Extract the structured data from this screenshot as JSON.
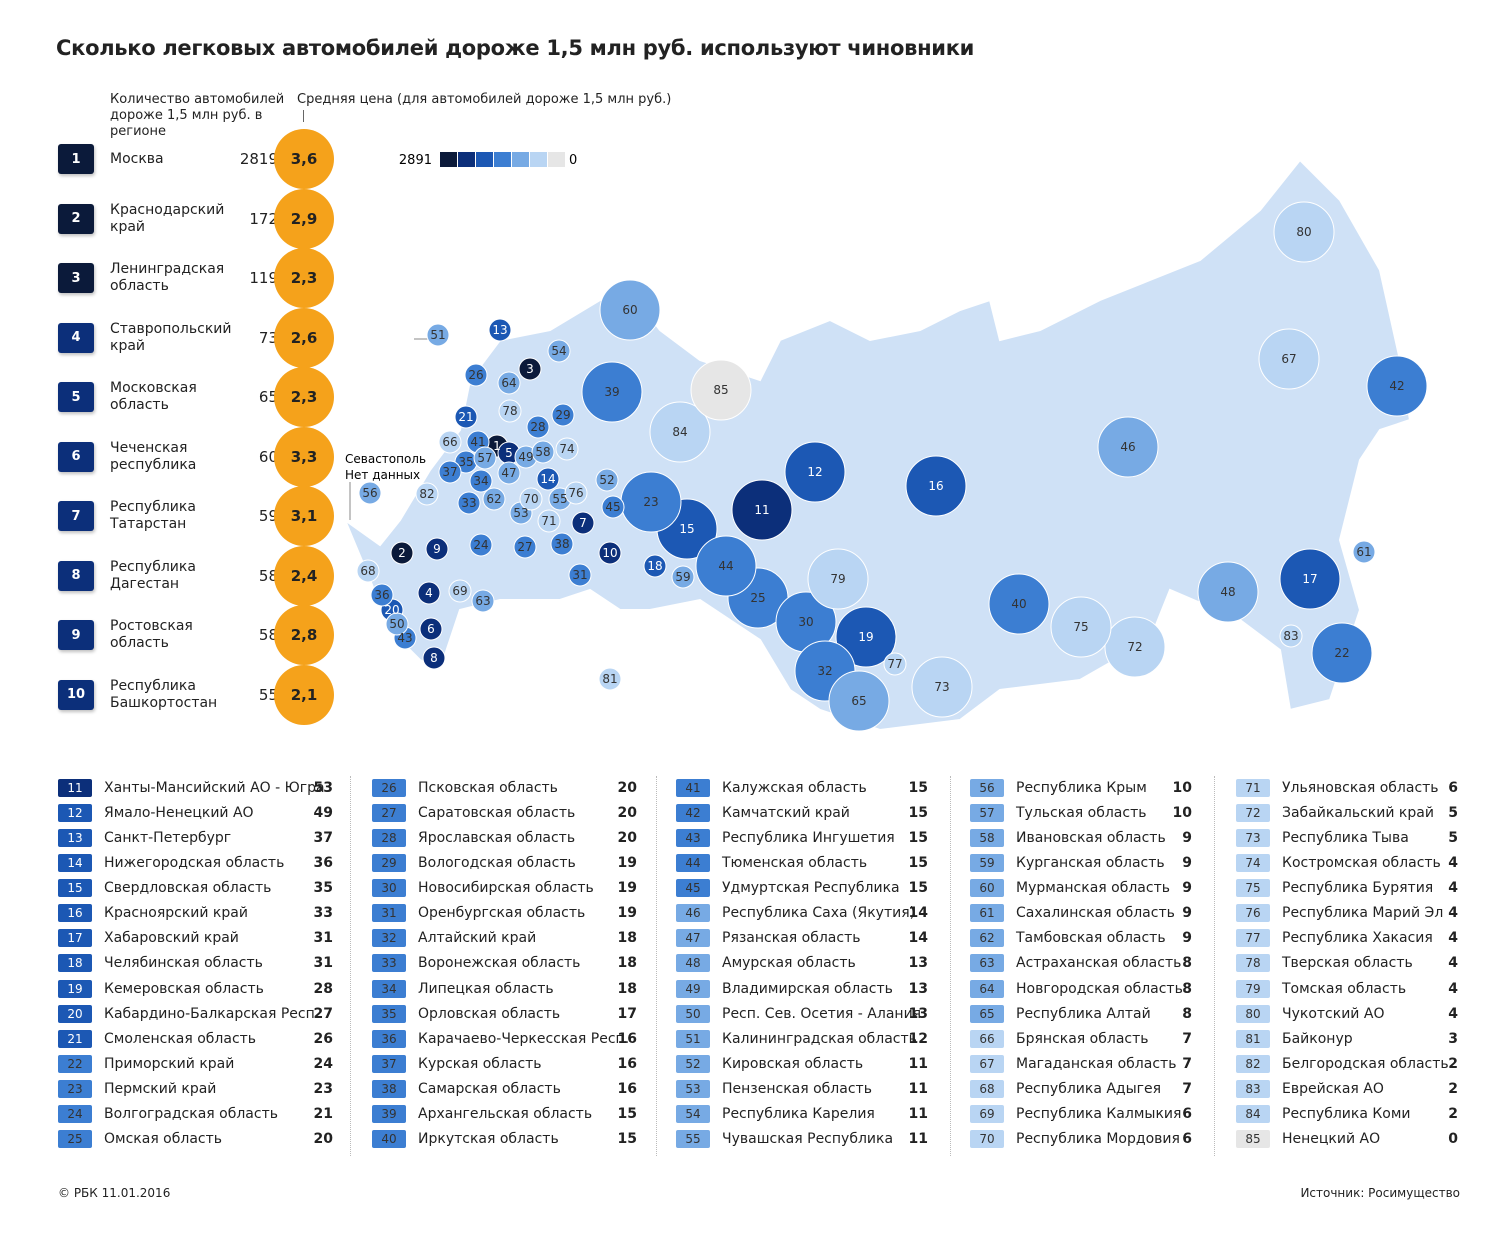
{
  "title": "Сколько легковых автомобилей дороже 1,5 млн руб. используют чиновники",
  "count_header": "Количество автомобилей дороже 1,5 млн руб. в регионе",
  "price_header": "Средняя цена (для автомобилей дороже 1,5 млн руб.)",
  "legend": {
    "max": 2891,
    "min": 0
  },
  "sevastopol": {
    "name": "Севастополь",
    "note": "Нет данных"
  },
  "regions": [
    {
      "rank": 1,
      "name": "Москва",
      "count": 2819,
      "price": "3,6"
    },
    {
      "rank": 2,
      "name": "Краснодарский край",
      "count": 172,
      "price": "2,9"
    },
    {
      "rank": 3,
      "name": "Ленинградская область",
      "count": 119,
      "price": "2,3"
    },
    {
      "rank": 4,
      "name": "Ставропольский край",
      "count": 73,
      "price": "2,6"
    },
    {
      "rank": 5,
      "name": "Московская область",
      "count": 65,
      "price": "2,3"
    },
    {
      "rank": 6,
      "name": "Чеченская республика",
      "count": 60,
      "price": "3,3"
    },
    {
      "rank": 7,
      "name": "Республика Татарстан",
      "count": 59,
      "price": "3,1"
    },
    {
      "rank": 8,
      "name": "Республика Дагестан",
      "count": 58,
      "price": "2,4"
    },
    {
      "rank": 9,
      "name": "Ростовская область",
      "count": 58,
      "price": "2,8"
    },
    {
      "rank": 10,
      "name": "Республика Башкортостан",
      "count": 55,
      "price": "2,1"
    },
    {
      "rank": 11,
      "name": "Ханты-Мансийский АО - Югра",
      "count": 53
    },
    {
      "rank": 12,
      "name": "Ямало-Ненецкий АО",
      "count": 49
    },
    {
      "rank": 13,
      "name": "Санкт-Петербург",
      "count": 37
    },
    {
      "rank": 14,
      "name": "Нижегородская область",
      "count": 36
    },
    {
      "rank": 15,
      "name": "Свердловская область",
      "count": 35
    },
    {
      "rank": 16,
      "name": "Красноярский край",
      "count": 33
    },
    {
      "rank": 17,
      "name": "Хабаровский край",
      "count": 31
    },
    {
      "rank": 18,
      "name": "Челябинская область",
      "count": 31
    },
    {
      "rank": 19,
      "name": "Кемеровская область",
      "count": 28
    },
    {
      "rank": 20,
      "name": "Кабардино-Балкарская Респ.",
      "count": 27
    },
    {
      "rank": 21,
      "name": "Смоленская область",
      "count": 26
    },
    {
      "rank": 22,
      "name": "Приморский край",
      "count": 24
    },
    {
      "rank": 23,
      "name": "Пермский край",
      "count": 23
    },
    {
      "rank": 24,
      "name": "Волгоградская область",
      "count": 21
    },
    {
      "rank": 25,
      "name": "Омская область",
      "count": 20
    },
    {
      "rank": 26,
      "name": "Псковская область",
      "count": 20
    },
    {
      "rank": 27,
      "name": "Саратовская область",
      "count": 20
    },
    {
      "rank": 28,
      "name": "Ярославская область",
      "count": 20
    },
    {
      "rank": 29,
      "name": "Вологодская область",
      "count": 19
    },
    {
      "rank": 30,
      "name": "Новосибирская область",
      "count": 19
    },
    {
      "rank": 31,
      "name": "Оренбургская область",
      "count": 19
    },
    {
      "rank": 32,
      "name": "Алтайский край",
      "count": 18
    },
    {
      "rank": 33,
      "name": "Воронежская область",
      "count": 18
    },
    {
      "rank": 34,
      "name": "Липецкая область",
      "count": 18
    },
    {
      "rank": 35,
      "name": "Орловская область",
      "count": 17
    },
    {
      "rank": 36,
      "name": "Карачаево-Черкесская Респ.",
      "count": 16
    },
    {
      "rank": 37,
      "name": "Курская область",
      "count": 16
    },
    {
      "rank": 38,
      "name": "Самарская область",
      "count": 16
    },
    {
      "rank": 39,
      "name": "Архангельская область",
      "count": 15
    },
    {
      "rank": 40,
      "name": "Иркутская область",
      "count": 15
    },
    {
      "rank": 41,
      "name": "Калужская область",
      "count": 15
    },
    {
      "rank": 42,
      "name": "Камчатский край",
      "count": 15
    },
    {
      "rank": 43,
      "name": "Республика Ингушетия",
      "count": 15
    },
    {
      "rank": 44,
      "name": "Тюменская область",
      "count": 15
    },
    {
      "rank": 45,
      "name": "Удмуртская Республика",
      "count": 15
    },
    {
      "rank": 46,
      "name": "Республика Саха (Якутия)",
      "count": 14
    },
    {
      "rank": 47,
      "name": "Рязанская область",
      "count": 14
    },
    {
      "rank": 48,
      "name": "Амурская область",
      "count": 13
    },
    {
      "rank": 49,
      "name": "Владимирская область",
      "count": 13
    },
    {
      "rank": 50,
      "name": "Респ. Сев. Осетия - Алания",
      "count": 13
    },
    {
      "rank": 51,
      "name": "Калининградская область",
      "count": 12
    },
    {
      "rank": 52,
      "name": "Кировская область",
      "count": 11
    },
    {
      "rank": 53,
      "name": "Пензенская область",
      "count": 11
    },
    {
      "rank": 54,
      "name": "Республика Карелия",
      "count": 11
    },
    {
      "rank": 55,
      "name": "Чувашская Республика",
      "count": 11
    },
    {
      "rank": 56,
      "name": "Республика Крым",
      "count": 10
    },
    {
      "rank": 57,
      "name": "Тульская область",
      "count": 10
    },
    {
      "rank": 58,
      "name": "Ивановская область",
      "count": 9
    },
    {
      "rank": 59,
      "name": "Курганская область",
      "count": 9
    },
    {
      "rank": 60,
      "name": "Мурманская область",
      "count": 9
    },
    {
      "rank": 61,
      "name": "Сахалинская область",
      "count": 9
    },
    {
      "rank": 62,
      "name": "Тамбовская область",
      "count": 9
    },
    {
      "rank": 63,
      "name": "Астраханская область",
      "count": 8
    },
    {
      "rank": 64,
      "name": "Новгородская область",
      "count": 8
    },
    {
      "rank": 65,
      "name": "Республика Алтай",
      "count": 8
    },
    {
      "rank": 66,
      "name": "Брянская область",
      "count": 7
    },
    {
      "rank": 67,
      "name": "Магаданская область",
      "count": 7
    },
    {
      "rank": 68,
      "name": "Республика Адыгея",
      "count": 7
    },
    {
      "rank": 69,
      "name": "Республика Калмыкия",
      "count": 6
    },
    {
      "rank": 70,
      "name": "Республика Мордовия",
      "count": 6
    },
    {
      "rank": 71,
      "name": "Ульяновская область",
      "count": 6
    },
    {
      "rank": 72,
      "name": "Забайкальский край",
      "count": 5
    },
    {
      "rank": 73,
      "name": "Республика Тыва",
      "count": 5
    },
    {
      "rank": 74,
      "name": "Костромская область",
      "count": 4
    },
    {
      "rank": 75,
      "name": "Республика Бурятия",
      "count": 4
    },
    {
      "rank": 76,
      "name": "Республика Марий Эл",
      "count": 4
    },
    {
      "rank": 77,
      "name": "Республика Хакасия",
      "count": 4
    },
    {
      "rank": 78,
      "name": "Тверская область",
      "count": 4
    },
    {
      "rank": 79,
      "name": "Томская область",
      "count": 4
    },
    {
      "rank": 80,
      "name": "Чукотский АО",
      "count": 4
    },
    {
      "rank": 81,
      "name": "Байконур",
      "count": 3
    },
    {
      "rank": 82,
      "name": "Белгородская область",
      "count": 2
    },
    {
      "rank": 83,
      "name": "Еврейская АО",
      "count": 2
    },
    {
      "rank": 84,
      "name": "Республика Коми",
      "count": 2
    },
    {
      "rank": 85,
      "name": "Ненецкий АО",
      "count": 0
    }
  ],
  "footer": {
    "credit": "© РБК 11.01.2016",
    "source": "Источник: Росимущество"
  }
}
